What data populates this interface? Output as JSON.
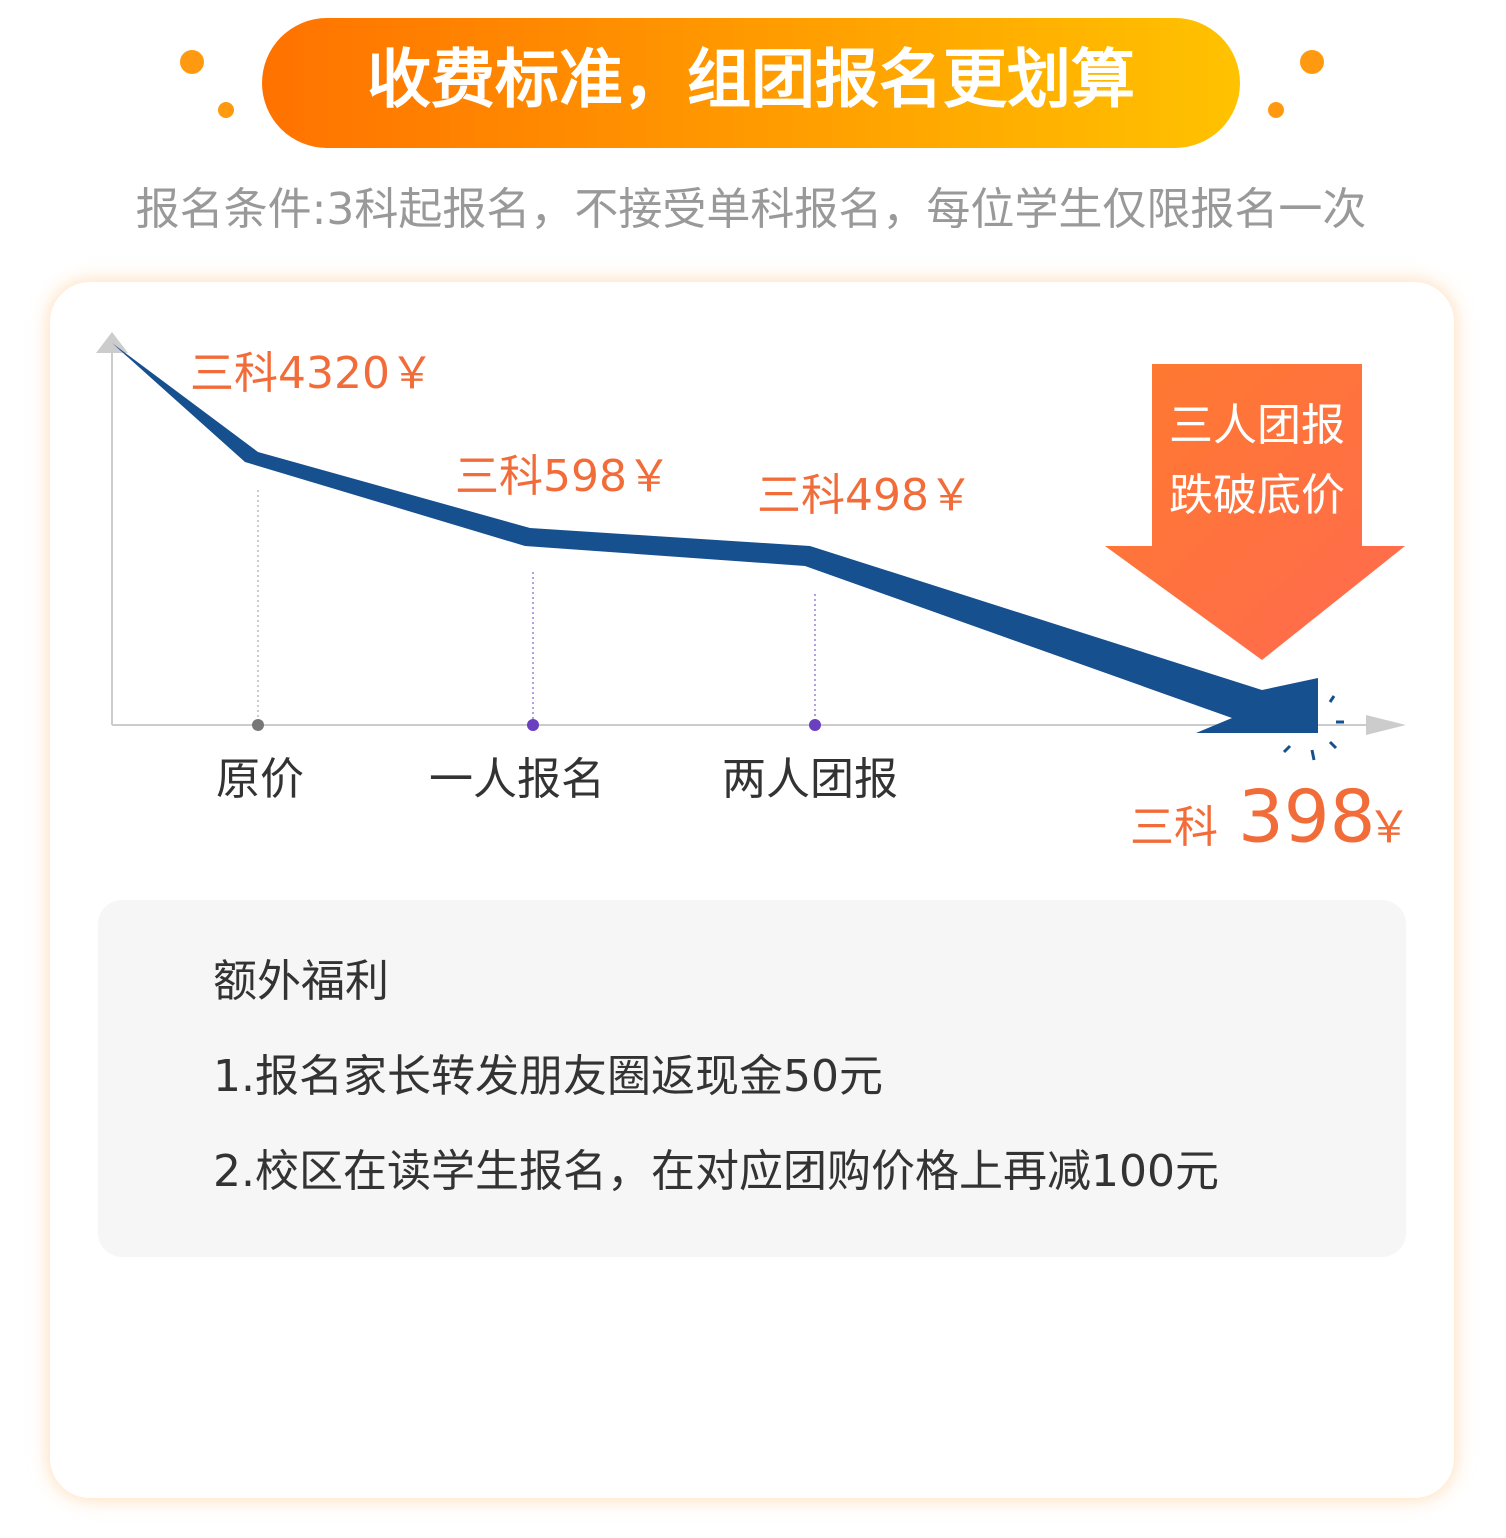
{
  "header": {
    "title": "收费标准，组团报名更划算",
    "subtitle": "报名条件:3科起报名，不接受单科报名，每位学生仅限报名一次"
  },
  "prices": {
    "original": "三科4320￥",
    "single": "三科598￥",
    "pair": "三科498￥",
    "group_prefix": "三科",
    "group_price": "398",
    "group_suffix": "￥"
  },
  "stages": [
    "原价",
    "一人报名",
    "两人团报"
  ],
  "callout": [
    "三人团报",
    "跌破底价"
  ],
  "benefits": {
    "title": "额外福利",
    "items": [
      "1.报名家长转发朋友圈返现金50元",
      "2.校区在读学生报名，在对应团购价格上再减100元"
    ]
  }
}
